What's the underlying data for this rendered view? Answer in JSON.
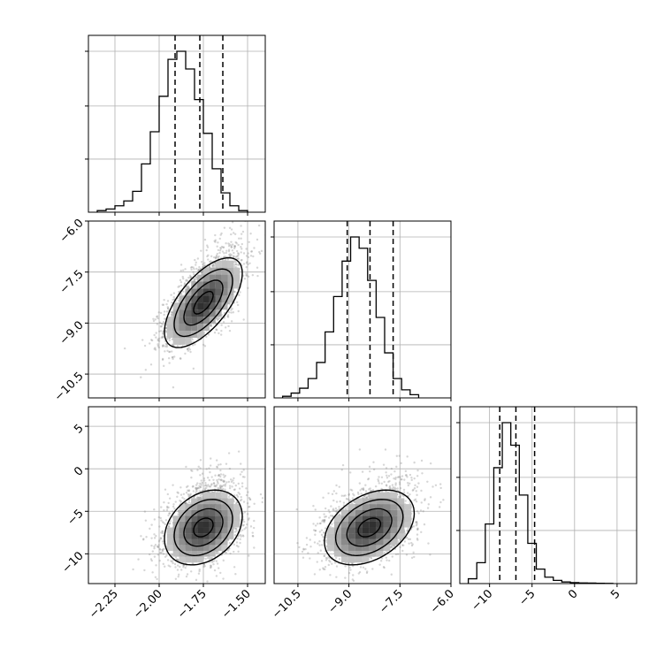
{
  "chart_data": {
    "type": "corner",
    "parameters": 3,
    "grid": true,
    "ranges": [
      [
        -2.4,
        -1.4
      ],
      [
        -11.2,
        -6.0
      ],
      [
        -13.5,
        7.3
      ]
    ],
    "ticks": [
      {
        "values": [
          -2.25,
          -2.0,
          -1.75,
          -1.5
        ],
        "labels": [
          "−2.25",
          "−2.00",
          "−1.75",
          "−1.50"
        ]
      },
      {
        "values": [
          -10.5,
          -9.0,
          -7.5,
          -6.0
        ],
        "labels": [
          "−10.5",
          "−9.0",
          "−7.5",
          "−6.0"
        ]
      },
      {
        "values": [
          -10,
          -5,
          0,
          5
        ],
        "labels": [
          "−10",
          "−5",
          "0",
          "5"
        ]
      }
    ],
    "quantiles": [
      [
        -1.91,
        -1.77,
        -1.64
      ],
      [
        -9.05,
        -8.38,
        -7.7
      ],
      [
        -8.8,
        -6.9,
        -4.7
      ]
    ],
    "histograms": [
      {
        "edges_start": -2.35,
        "bin_width": 0.05,
        "counts": [
          1,
          2,
          4,
          7,
          13,
          30,
          50,
          72,
          95,
          100,
          89,
          70,
          49,
          27,
          12,
          4,
          1
        ]
      },
      {
        "edges_start": -10.95,
        "bin_width": 0.25,
        "counts": [
          1,
          3,
          6,
          12,
          22,
          41,
          63,
          85,
          100,
          93,
          73,
          50,
          28,
          12,
          5,
          2
        ]
      },
      {
        "edges_start": -12.5,
        "bin_width": 1.0,
        "counts": [
          3,
          13,
          37,
          72,
          100,
          86,
          55,
          25,
          9,
          4,
          2,
          1,
          0.6,
          0.4,
          0.3,
          0.2,
          0.1
        ]
      }
    ],
    "pairs": [
      {
        "row": 1,
        "col": 0,
        "mean": [
          -1.75,
          -8.4
        ],
        "sd": [
          0.11,
          0.66
        ],
        "rho": 0.65
      },
      {
        "row": 2,
        "col": 0,
        "mean": [
          -1.75,
          -6.9
        ],
        "sd": [
          0.11,
          2.2
        ],
        "rho": 0.3
      },
      {
        "row": 2,
        "col": 1,
        "mean": [
          -8.4,
          -6.9
        ],
        "sd": [
          0.66,
          2.2
        ],
        "rho": 0.38
      }
    ]
  }
}
